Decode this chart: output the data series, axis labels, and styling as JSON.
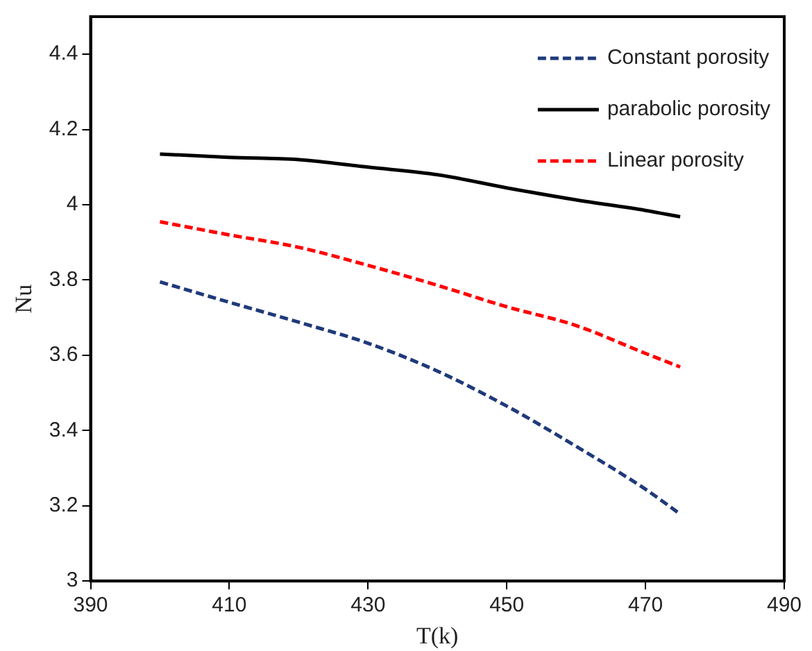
{
  "chart_data": {
    "type": "line",
    "xlabel": "T(k)",
    "ylabel": "Nu",
    "xlim": [
      390,
      490
    ],
    "xticks": [
      390,
      410,
      430,
      450,
      470,
      490
    ],
    "ylim": [
      3,
      4.5
    ],
    "yticks": [
      3,
      3.2,
      3.4,
      3.6,
      3.8,
      4,
      4.2,
      4.4
    ],
    "grid": false,
    "legend": "top right",
    "marker": "none",
    "x": [
      400,
      410,
      420,
      430,
      440,
      450,
      460,
      470,
      475
    ],
    "series": [
      {
        "name": "Constant porosity",
        "color": "#1f3a7a",
        "line_style": "dashed",
        "values": [
          3.795,
          3.741,
          3.688,
          3.632,
          3.558,
          3.465,
          3.358,
          3.244,
          3.178
        ]
      },
      {
        "name": "parabolic porosity",
        "color": "#000000",
        "line_style": "solid",
        "values": [
          4.135,
          4.126,
          4.12,
          4.1,
          4.08,
          4.045,
          4.013,
          3.985,
          3.968
        ]
      },
      {
        "name": "Linear porosity",
        "color": "#ff0000",
        "line_style": "dashed",
        "values": [
          3.955,
          3.92,
          3.887,
          3.839,
          3.786,
          3.729,
          3.679,
          3.605,
          3.569
        ]
      }
    ]
  }
}
